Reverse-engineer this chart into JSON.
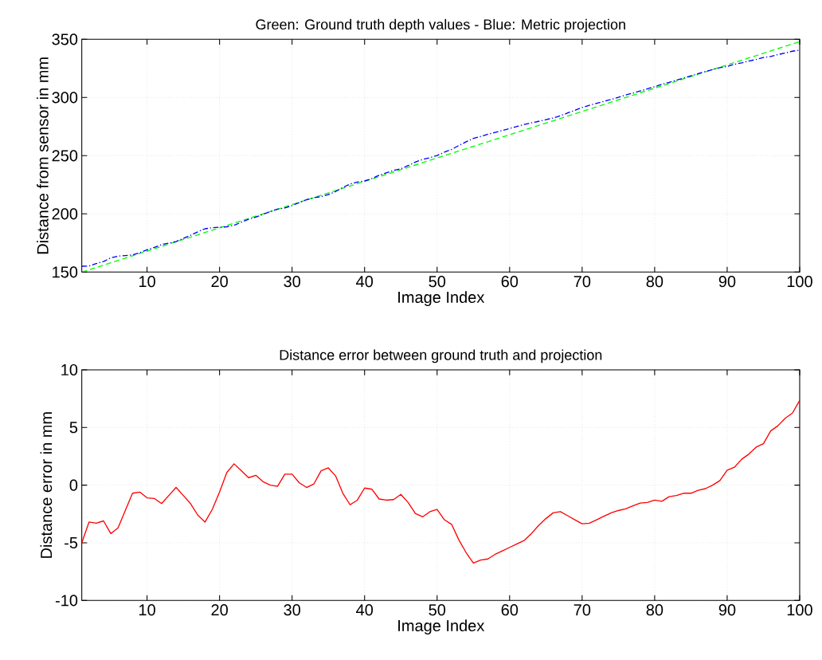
{
  "chart_data": [
    {
      "type": "line",
      "title": "Green: Ground truth depth values - Blue: Metric projection",
      "xlabel": "Image Index",
      "ylabel": "Distance from sensor in mm",
      "x": [
        1,
        2,
        3,
        4,
        5,
        6,
        7,
        8,
        9,
        10,
        11,
        12,
        13,
        14,
        15,
        16,
        17,
        18,
        19,
        20,
        21,
        22,
        23,
        24,
        25,
        26,
        27,
        28,
        29,
        30,
        31,
        32,
        33,
        34,
        35,
        36,
        37,
        38,
        39,
        40,
        41,
        42,
        43,
        44,
        45,
        46,
        47,
        48,
        49,
        50,
        51,
        52,
        53,
        54,
        55,
        56,
        57,
        58,
        59,
        60,
        61,
        62,
        63,
        64,
        65,
        66,
        67,
        68,
        69,
        70,
        71,
        72,
        73,
        74,
        75,
        76,
        77,
        78,
        79,
        80,
        81,
        82,
        83,
        84,
        85,
        86,
        87,
        88,
        89,
        90,
        91,
        92,
        93,
        94,
        95,
        96,
        97,
        98,
        99,
        100
      ],
      "series": [
        {
          "color": "#00ff00",
          "line_style": "dashed",
          "values": [
            150,
            152,
            154,
            156,
            158,
            160,
            162,
            164,
            166,
            168,
            170,
            172,
            174,
            176,
            178,
            180,
            182,
            184,
            186,
            188,
            190,
            192,
            194,
            196,
            198,
            200,
            202,
            204,
            206,
            208,
            210,
            212,
            214,
            216,
            218,
            220,
            222,
            224,
            226,
            228,
            230,
            232,
            234,
            236,
            238,
            240,
            242,
            244,
            246,
            248,
            250,
            252,
            254,
            256,
            258,
            260,
            262,
            264,
            266,
            268,
            270,
            272,
            274,
            276,
            278,
            280,
            282,
            284,
            286,
            288,
            290,
            292,
            294,
            296,
            298,
            300,
            302,
            304,
            306,
            308,
            310,
            312,
            314,
            316,
            318,
            320,
            322,
            324,
            326,
            328,
            330,
            332,
            334,
            336,
            338,
            340,
            342,
            344,
            346,
            348
          ]
        },
        {
          "color": "#0000ff",
          "line_style": "dashdot",
          "values": [
            155,
            155.2,
            157.3,
            159.1,
            162.2,
            163.7,
            164.2,
            164.7,
            166.6,
            169.1,
            171.2,
            173.6,
            174.9,
            176.2,
            178.9,
            181.6,
            184.6,
            187.2,
            188.1,
            188.6,
            188.9,
            190.2,
            192.8,
            195.4,
            197.2,
            199.7,
            202.0,
            204.1,
            205.1,
            207.1,
            209.8,
            212.2,
            213.9,
            214.8,
            216.5,
            219.2,
            222.7,
            225.7,
            227.3,
            228.3,
            230.4,
            233.2,
            235.3,
            237.3,
            238.8,
            241.5,
            244.5,
            246.8,
            248.3,
            250.1,
            253.0,
            255.4,
            258.8,
            261.9,
            264.8,
            266.5,
            268.4,
            270.0,
            271.7,
            273.4,
            275.1,
            276.8,
            278.2,
            279.5,
            280.9,
            282.4,
            284.3,
            286.7,
            289.0,
            291.4,
            293.3,
            295.0,
            296.7,
            298.4,
            300.2,
            302.1,
            303.8,
            305.6,
            307.5,
            309.3,
            311.4,
            313.0,
            314.9,
            316.7,
            318.7,
            320.5,
            322.3,
            324.0,
            325.6,
            326.7,
            328.5,
            329.8,
            331.3,
            332.7,
            334.4,
            335.3,
            336.9,
            338.2,
            339.8,
            340.7
          ]
        }
      ],
      "xlim": [
        1,
        100
      ],
      "xticks": [
        10,
        20,
        30,
        40,
        50,
        60,
        70,
        80,
        90,
        100
      ],
      "ylim": [
        150,
        350
      ],
      "yticks": [
        150,
        200,
        250,
        300,
        350
      ],
      "grid": true
    },
    {
      "type": "line",
      "title": "Distance error between ground truth and projection",
      "xlabel": "Image Index",
      "ylabel": "Distance error in mm",
      "x": [
        1,
        2,
        3,
        4,
        5,
        6,
        7,
        8,
        9,
        10,
        11,
        12,
        13,
        14,
        15,
        16,
        17,
        18,
        19,
        20,
        21,
        22,
        23,
        24,
        25,
        26,
        27,
        28,
        29,
        30,
        31,
        32,
        33,
        34,
        35,
        36,
        37,
        38,
        39,
        40,
        41,
        42,
        43,
        44,
        45,
        46,
        47,
        48,
        49,
        50,
        51,
        52,
        53,
        54,
        55,
        56,
        57,
        58,
        59,
        60,
        61,
        62,
        63,
        64,
        65,
        66,
        67,
        68,
        69,
        70,
        71,
        72,
        73,
        74,
        75,
        76,
        77,
        78,
        79,
        80,
        81,
        82,
        83,
        84,
        85,
        86,
        87,
        88,
        89,
        90,
        91,
        92,
        93,
        94,
        95,
        96,
        97,
        98,
        99,
        100
      ],
      "color": "#ff0000",
      "line_style": "solid",
      "values": [
        -5.0,
        -3.2,
        -3.3,
        -3.1,
        -4.2,
        -3.7,
        -2.2,
        -0.7,
        -0.6,
        -1.1,
        -1.15,
        -1.6,
        -0.9,
        -0.2,
        -0.9,
        -1.6,
        -2.6,
        -3.2,
        -2.1,
        -0.6,
        1.1,
        1.85,
        1.25,
        0.65,
        0.85,
        0.3,
        0.0,
        -0.1,
        0.95,
        0.95,
        0.2,
        -0.2,
        0.1,
        1.25,
        1.5,
        0.8,
        -0.7,
        -1.7,
        -1.3,
        -0.25,
        -0.35,
        -1.2,
        -1.3,
        -1.25,
        -0.8,
        -1.5,
        -2.45,
        -2.75,
        -2.3,
        -2.1,
        -3.0,
        -3.4,
        -4.75,
        -5.85,
        -6.75,
        -6.5,
        -6.4,
        -6.0,
        -5.7,
        -5.4,
        -5.1,
        -4.8,
        -4.2,
        -3.5,
        -2.9,
        -2.4,
        -2.3,
        -2.65,
        -3.0,
        -3.35,
        -3.3,
        -3.0,
        -2.7,
        -2.4,
        -2.2,
        -2.05,
        -1.8,
        -1.55,
        -1.5,
        -1.3,
        -1.4,
        -1.0,
        -0.9,
        -0.7,
        -0.7,
        -0.45,
        -0.3,
        0.0,
        0.4,
        1.3,
        1.55,
        2.25,
        2.7,
        3.3,
        3.6,
        4.7,
        5.15,
        5.8,
        6.25,
        7.35
      ],
      "xlim": [
        1,
        100
      ],
      "xticks": [
        10,
        20,
        30,
        40,
        50,
        60,
        70,
        80,
        90,
        100
      ],
      "ylim": [
        -10,
        10
      ],
      "yticks": [
        -10,
        -5,
        0,
        5,
        10
      ],
      "grid": true
    }
  ]
}
